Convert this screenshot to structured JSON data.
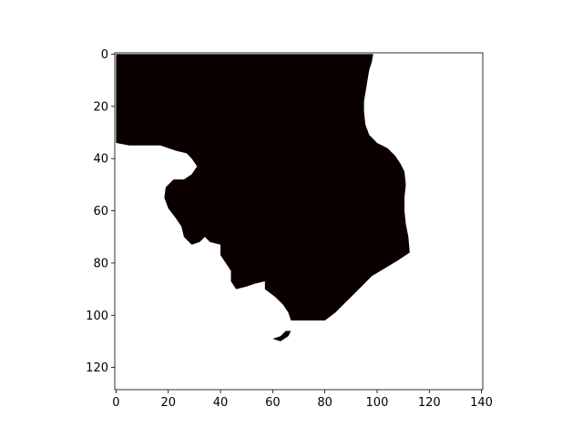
{
  "chart_data": {
    "type": "heatmap",
    "title": "",
    "xlabel": "",
    "ylabel": "",
    "xlim": [
      -0.5,
      140.5
    ],
    "ylim": [
      128.5,
      -0.5
    ],
    "x_ticks": [
      0,
      20,
      40,
      60,
      80,
      100,
      120,
      140
    ],
    "y_ticks": [
      0,
      20,
      40,
      60,
      80,
      100,
      120
    ],
    "x_tick_labels": [
      "0",
      "20",
      "40",
      "60",
      "80",
      "100",
      "120",
      "140"
    ],
    "y_tick_labels": [
      "0",
      "20",
      "40",
      "60",
      "80",
      "100",
      "120"
    ],
    "colors": {
      "foreground": "#0b0000",
      "background": "#ffffff",
      "axes": "#000000"
    },
    "mask_regions": [
      {
        "label": "main-region",
        "outline": [
          [
            0,
            0
          ],
          [
            98.5,
            0
          ],
          [
            98,
            3
          ],
          [
            97,
            6
          ],
          [
            96.5,
            9
          ],
          [
            96,
            12
          ],
          [
            95.5,
            15
          ],
          [
            95,
            18
          ],
          [
            95,
            22
          ],
          [
            95.5,
            27
          ],
          [
            97,
            31
          ],
          [
            100,
            34
          ],
          [
            104,
            36
          ],
          [
            107,
            39
          ],
          [
            109,
            42
          ],
          [
            110.5,
            45
          ],
          [
            111,
            50
          ],
          [
            110.5,
            55
          ],
          [
            110.5,
            60
          ],
          [
            111,
            65
          ],
          [
            112,
            70
          ],
          [
            112.5,
            76
          ],
          [
            108,
            79
          ],
          [
            103,
            82
          ],
          [
            98,
            85
          ],
          [
            94,
            89
          ],
          [
            90,
            93
          ],
          [
            87,
            96
          ],
          [
            84,
            99
          ],
          [
            80,
            102
          ],
          [
            67,
            102
          ],
          [
            66,
            99
          ],
          [
            64,
            96
          ],
          [
            61,
            93
          ],
          [
            57,
            90
          ],
          [
            57,
            87
          ],
          [
            53,
            88
          ],
          [
            50,
            89
          ],
          [
            46,
            90
          ],
          [
            44,
            87
          ],
          [
            44,
            83
          ],
          [
            42,
            80
          ],
          [
            40,
            77
          ],
          [
            40,
            73
          ],
          [
            36,
            72
          ],
          [
            34,
            70
          ],
          [
            32,
            72
          ],
          [
            29,
            73
          ],
          [
            26,
            70
          ],
          [
            25,
            66
          ],
          [
            23,
            63
          ],
          [
            20,
            59
          ],
          [
            18.5,
            55
          ],
          [
            19,
            51
          ],
          [
            22,
            48
          ],
          [
            26,
            48
          ],
          [
            29,
            46
          ],
          [
            31,
            43
          ],
          [
            29,
            40
          ],
          [
            27,
            38
          ],
          [
            23,
            37
          ],
          [
            17,
            35
          ],
          [
            13,
            35
          ],
          [
            5,
            35
          ],
          [
            0,
            34
          ]
        ]
      },
      {
        "label": "small-blob",
        "outline": [
          [
            60,
            109
          ],
          [
            63,
            110
          ],
          [
            66,
            108
          ],
          [
            67,
            106
          ],
          [
            65,
            106
          ],
          [
            63,
            108
          ]
        ]
      }
    ]
  }
}
